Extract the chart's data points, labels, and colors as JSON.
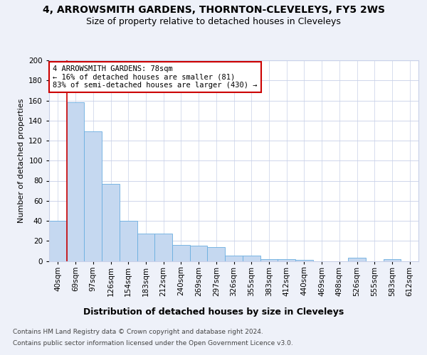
{
  "title1": "4, ARROWSMITH GARDENS, THORNTON-CLEVELEYS, FY5 2WS",
  "title2": "Size of property relative to detached houses in Cleveleys",
  "xlabel": "Distribution of detached houses by size in Cleveleys",
  "ylabel": "Number of detached properties",
  "categories": [
    "40sqm",
    "69sqm",
    "97sqm",
    "126sqm",
    "154sqm",
    "183sqm",
    "212sqm",
    "240sqm",
    "269sqm",
    "297sqm",
    "326sqm",
    "355sqm",
    "383sqm",
    "412sqm",
    "440sqm",
    "469sqm",
    "498sqm",
    "526sqm",
    "555sqm",
    "583sqm",
    "612sqm"
  ],
  "values": [
    40,
    158,
    129,
    77,
    40,
    27,
    27,
    16,
    15,
    14,
    5,
    5,
    2,
    2,
    1,
    0,
    0,
    3,
    0,
    2,
    0
  ],
  "bar_color": "#c5d8f0",
  "bar_edge_color": "#6aaee0",
  "annotation_text": "4 ARROWSMITH GARDENS: 78sqm\n← 16% of detached houses are smaller (81)\n83% of semi-detached houses are larger (430) →",
  "annotation_box_color": "white",
  "annotation_box_edge_color": "#cc0000",
  "vline_color": "#cc0000",
  "vline_x": 1.5,
  "ylim": [
    0,
    200
  ],
  "yticks": [
    0,
    20,
    40,
    60,
    80,
    100,
    120,
    140,
    160,
    180,
    200
  ],
  "background_color": "#eef1f9",
  "plot_bg_color": "white",
  "grid_color": "#c8d0e8",
  "footer1": "Contains HM Land Registry data © Crown copyright and database right 2024.",
  "footer2": "Contains public sector information licensed under the Open Government Licence v3.0.",
  "title1_fontsize": 10,
  "title2_fontsize": 9,
  "xlabel_fontsize": 9,
  "ylabel_fontsize": 8,
  "tick_fontsize": 7.5,
  "annotation_fontsize": 7.5,
  "footer_fontsize": 6.5
}
